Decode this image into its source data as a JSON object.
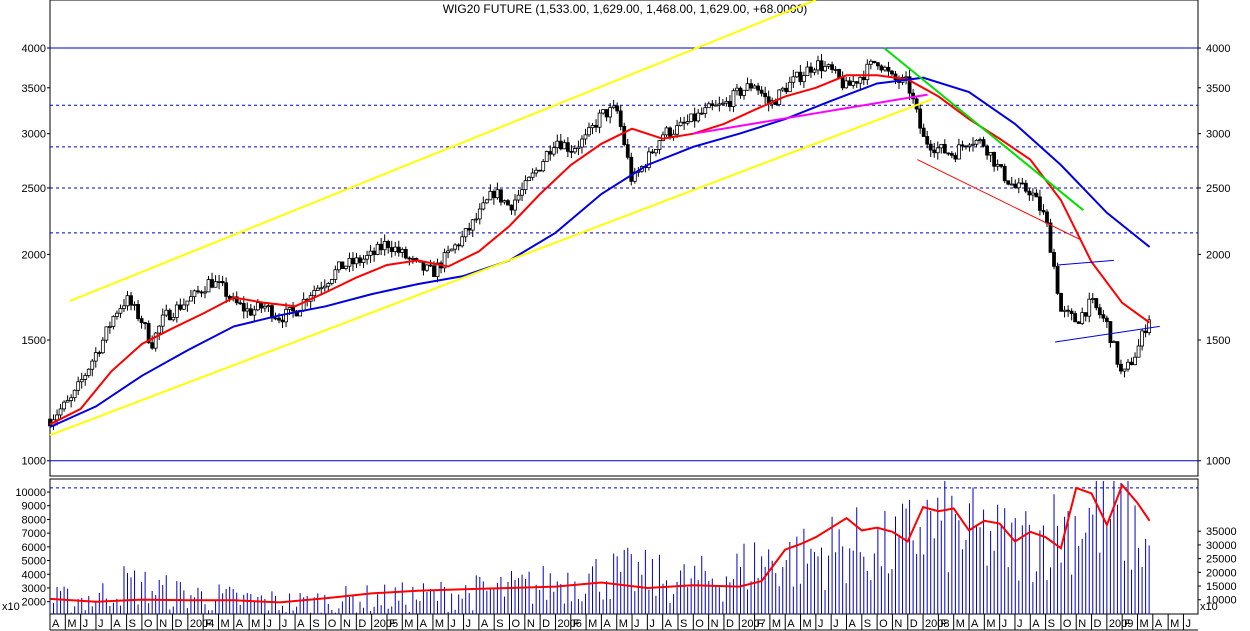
{
  "title": "WIG20 FUTURE (1,533.00, 1,629.00, 1,468.00, 1,629.00, +68.0000)",
  "chart_data": [
    {
      "panel": "price",
      "type": "candlestick",
      "scale": "log",
      "ylim": [
        950,
        4700
      ],
      "y_ticks": [
        1000,
        1500,
        2000,
        2500,
        3000,
        3500,
        4000
      ],
      "reference_lines": [
        {
          "y": 4000,
          "style": "solid",
          "color": "#0000c0"
        },
        {
          "y": 3300,
          "style": "dashed",
          "color": "#0000c0"
        },
        {
          "y": 2870,
          "style": "dashed",
          "color": "#0000c0"
        },
        {
          "y": 2500,
          "style": "dashed",
          "color": "#0000c0"
        },
        {
          "y": 2150,
          "style": "dashed",
          "color": "#0000c0"
        },
        {
          "y": 1000,
          "style": "solid",
          "color": "#0000c0"
        }
      ],
      "x_start": "2003-04",
      "x_end": "2009-06",
      "x_labels": [
        "A",
        "M",
        "J",
        "J",
        "A",
        "S",
        "O",
        "N",
        "D",
        "2004",
        "F",
        "M",
        "A",
        "M",
        "J",
        "J",
        "A",
        "S",
        "O",
        "N",
        "D",
        "2005",
        "F",
        "M",
        "A",
        "M",
        "J",
        "J",
        "A",
        "S",
        "O",
        "N",
        "D",
        "2006",
        "F",
        "M",
        "A",
        "M",
        "J",
        "J",
        "A",
        "S",
        "O",
        "N",
        "D",
        "2007",
        "F",
        "M",
        "A",
        "M",
        "J",
        "J",
        "A",
        "S",
        "O",
        "N",
        "D",
        "2008",
        "F",
        "M",
        "A",
        "M",
        "J",
        "J",
        "A",
        "S",
        "O",
        "N",
        "D",
        "2009",
        "F",
        "M",
        "A",
        "M",
        "J"
      ],
      "price_path": [
        [
          "2003-04-01",
          1150
        ],
        [
          "2003-05-15",
          1230
        ],
        [
          "2003-06-15",
          1360
        ],
        [
          "2003-07-15",
          1500
        ],
        [
          "2003-08-10",
          1650
        ],
        [
          "2003-09-01",
          1720
        ],
        [
          "2003-10-01",
          1600
        ],
        [
          "2003-10-20",
          1480
        ],
        [
          "2003-11-15",
          1620
        ],
        [
          "2003-12-15",
          1680
        ],
        [
          "2004-01-15",
          1740
        ],
        [
          "2004-02-15",
          1830
        ],
        [
          "2004-03-10",
          1780
        ],
        [
          "2004-04-01",
          1700
        ],
        [
          "2004-05-01",
          1650
        ],
        [
          "2004-06-01",
          1680
        ],
        [
          "2004-07-01",
          1620
        ],
        [
          "2004-08-01",
          1650
        ],
        [
          "2004-09-01",
          1760
        ],
        [
          "2004-10-01",
          1830
        ],
        [
          "2004-11-01",
          1920
        ],
        [
          "2004-12-01",
          1950
        ],
        [
          "2005-01-01",
          1990
        ],
        [
          "2005-02-01",
          2080
        ],
        [
          "2005-03-01",
          2000
        ],
        [
          "2005-04-01",
          1920
        ],
        [
          "2005-05-01",
          1880
        ],
        [
          "2005-06-01",
          2000
        ],
        [
          "2005-07-01",
          2120
        ],
        [
          "2005-08-01",
          2280
        ],
        [
          "2005-09-01",
          2470
        ],
        [
          "2005-10-01",
          2350
        ],
        [
          "2005-11-01",
          2500
        ],
        [
          "2005-12-01",
          2700
        ],
        [
          "2006-01-01",
          2950
        ],
        [
          "2006-02-01",
          2850
        ],
        [
          "2006-03-01",
          2950
        ],
        [
          "2006-04-01",
          3200
        ],
        [
          "2006-05-01",
          3250
        ],
        [
          "2006-06-01",
          2550
        ],
        [
          "2006-07-01",
          2750
        ],
        [
          "2006-08-01",
          3000
        ],
        [
          "2006-09-01",
          3050
        ],
        [
          "2006-10-01",
          3150
        ],
        [
          "2006-11-01",
          3250
        ],
        [
          "2006-12-01",
          3300
        ],
        [
          "2007-01-01",
          3450
        ],
        [
          "2007-02-01",
          3550
        ],
        [
          "2007-03-01",
          3300
        ],
        [
          "2007-04-01",
          3500
        ],
        [
          "2007-05-01",
          3650
        ],
        [
          "2007-06-01",
          3800
        ],
        [
          "2007-07-01",
          3700
        ],
        [
          "2007-08-01",
          3500
        ],
        [
          "2007-09-01",
          3650
        ],
        [
          "2007-10-01",
          3850
        ],
        [
          "2007-11-01",
          3600
        ],
        [
          "2007-12-01",
          3550
        ],
        [
          "2008-01-01",
          2950
        ],
        [
          "2008-02-01",
          2850
        ],
        [
          "2008-03-01",
          2800
        ],
        [
          "2008-04-01",
          2950
        ],
        [
          "2008-05-01",
          2900
        ],
        [
          "2008-06-01",
          2650
        ],
        [
          "2008-07-01",
          2500
        ],
        [
          "2008-08-01",
          2480
        ],
        [
          "2008-09-01",
          2250
        ],
        [
          "2008-10-01",
          1650
        ],
        [
          "2008-11-01",
          1600
        ],
        [
          "2008-12-01",
          1700
        ],
        [
          "2009-01-01",
          1580
        ],
        [
          "2009-02-01",
          1320
        ],
        [
          "2009-03-01",
          1450
        ],
        [
          "2009-03-25",
          1629
        ]
      ],
      "overlays": [
        {
          "name": "",
          "color": "#ff0000",
          "points": [
            [
              "2003-04-01",
              1130
            ],
            [
              "2003-06-01",
              1190
            ],
            [
              "2003-08-01",
              1350
            ],
            [
              "2003-10-01",
              1480
            ],
            [
              "2003-12-01",
              1560
            ],
            [
              "2004-02-01",
              1640
            ],
            [
              "2004-04-01",
              1730
            ],
            [
              "2004-06-01",
              1700
            ],
            [
              "2004-08-01",
              1680
            ],
            [
              "2004-10-01",
              1760
            ],
            [
              "2004-12-01",
              1850
            ],
            [
              "2005-02-01",
              1930
            ],
            [
              "2005-04-01",
              1960
            ],
            [
              "2005-06-01",
              1920
            ],
            [
              "2005-08-01",
              2020
            ],
            [
              "2005-10-01",
              2200
            ],
            [
              "2005-12-01",
              2450
            ],
            [
              "2006-02-01",
              2700
            ],
            [
              "2006-04-01",
              2900
            ],
            [
              "2006-06-01",
              3050
            ],
            [
              "2006-08-01",
              2950
            ],
            [
              "2006-10-01",
              3000
            ],
            [
              "2006-12-01",
              3100
            ],
            [
              "2007-02-01",
              3250
            ],
            [
              "2007-04-01",
              3400
            ],
            [
              "2007-06-01",
              3500
            ],
            [
              "2007-08-01",
              3650
            ],
            [
              "2007-10-01",
              3650
            ],
            [
              "2007-12-01",
              3600
            ],
            [
              "2008-02-01",
              3400
            ],
            [
              "2008-04-01",
              3150
            ],
            [
              "2008-06-01",
              2950
            ],
            [
              "2008-08-01",
              2750
            ],
            [
              "2008-10-01",
              2400
            ],
            [
              "2008-12-01",
              1950
            ],
            [
              "2009-02-01",
              1700
            ],
            [
              "2009-03-25",
              1590
            ]
          ]
        },
        {
          "name": "",
          "color": "#0000e0",
          "points": [
            [
              "2003-04-01",
              1120
            ],
            [
              "2003-07-01",
              1200
            ],
            [
              "2003-10-01",
              1330
            ],
            [
              "2004-01-01",
              1450
            ],
            [
              "2004-04-01",
              1570
            ],
            [
              "2004-07-01",
              1630
            ],
            [
              "2004-10-01",
              1680
            ],
            [
              "2005-01-01",
              1750
            ],
            [
              "2005-04-01",
              1810
            ],
            [
              "2005-07-01",
              1860
            ],
            [
              "2005-10-01",
              1960
            ],
            [
              "2006-01-01",
              2150
            ],
            [
              "2006-04-01",
              2450
            ],
            [
              "2006-07-01",
              2700
            ],
            [
              "2006-10-01",
              2870
            ],
            [
              "2007-01-01",
              3000
            ],
            [
              "2007-04-01",
              3150
            ],
            [
              "2007-07-01",
              3350
            ],
            [
              "2007-10-01",
              3550
            ],
            [
              "2008-01-01",
              3620
            ],
            [
              "2008-04-01",
              3450
            ],
            [
              "2008-07-01",
              3100
            ],
            [
              "2008-10-01",
              2700
            ],
            [
              "2009-01-01",
              2300
            ],
            [
              "2009-03-25",
              2050
            ]
          ]
        },
        {
          "name": "",
          "color": "#ffff00",
          "points": [
            [
              "2003-05-10",
              1710
            ],
            [
              "2007-06-01",
              4700
            ]
          ]
        },
        {
          "name": "",
          "color": "#ffff00",
          "points": [
            [
              "2003-04-01",
              1090
            ],
            [
              "2008-01-20",
              3370
            ]
          ]
        },
        {
          "name": "",
          "color": "#00e000",
          "points": [
            [
              "2007-10-15",
              4000
            ],
            [
              "2008-11-15",
              2320
            ]
          ]
        },
        {
          "name": "",
          "color": "#ff00ff",
          "points": [
            [
              "2006-10-01",
              3000
            ],
            [
              "2008-01-10",
              3420
            ]
          ]
        },
        {
          "name": "",
          "color": "#ff0000",
          "points": [
            [
              "2007-12-20",
              2750
            ],
            [
              "2008-11-10",
              2100
            ]
          ]
        },
        {
          "name": "",
          "color": "#0000e0",
          "points": [
            [
              "2008-09-25",
              1930
            ],
            [
              "2009-01-15",
              1960
            ]
          ]
        },
        {
          "name": "",
          "color": "#0000e0",
          "points": [
            [
              "2008-09-20",
              1490
            ],
            [
              "2009-04-15",
              1570
            ]
          ]
        }
      ]
    },
    {
      "panel": "volume",
      "type": "bar",
      "multiplier_label": "x10",
      "left_axis_ticks": [
        2000,
        3000,
        4000,
        5000,
        6000,
        7000,
        8000,
        9000,
        10000
      ],
      "right_axis_ticks": [
        10000,
        15000,
        20000,
        25000,
        30000,
        35000
      ],
      "reference_line": {
        "y_left": 10300,
        "style": "dashed",
        "color": "#0000c0"
      },
      "volume_path": [
        [
          "2003-04-01",
          2300
        ],
        [
          "2003-07-01",
          2500
        ],
        [
          "2003-09-01",
          3700
        ],
        [
          "2003-12-01",
          2900
        ],
        [
          "2004-04-01",
          2400
        ],
        [
          "2004-08-01",
          2100
        ],
        [
          "2004-12-01",
          2400
        ],
        [
          "2005-04-01",
          2600
        ],
        [
          "2005-08-01",
          3000
        ],
        [
          "2005-12-01",
          3500
        ],
        [
          "2006-03-01",
          4200
        ],
        [
          "2006-06-01",
          4500
        ],
        [
          "2006-09-01",
          3800
        ],
        [
          "2006-12-01",
          4200
        ],
        [
          "2007-02-01",
          5400
        ],
        [
          "2007-05-01",
          5700
        ],
        [
          "2007-08-01",
          6800
        ],
        [
          "2007-11-01",
          6400
        ],
        [
          "2008-01-01",
          8500
        ],
        [
          "2008-04-01",
          7800
        ],
        [
          "2008-07-01",
          6800
        ],
        [
          "2008-10-01",
          8200
        ],
        [
          "2008-12-01",
          9200
        ],
        [
          "2009-02-01",
          8800
        ],
        [
          "2009-03-25",
          6500
        ]
      ],
      "overlay": {
        "name": "",
        "color": "#ff0000",
        "points": [
          [
            "2003-04-01",
            2200
          ],
          [
            "2003-07-01",
            2000
          ],
          [
            "2003-10-01",
            2150
          ],
          [
            "2004-01-01",
            2100
          ],
          [
            "2004-04-01",
            2100
          ],
          [
            "2004-07-01",
            1950
          ],
          [
            "2004-10-01",
            2250
          ],
          [
            "2005-01-01",
            2600
          ],
          [
            "2005-04-01",
            2800
          ],
          [
            "2005-07-01",
            2900
          ],
          [
            "2005-10-01",
            3000
          ],
          [
            "2006-01-01",
            3100
          ],
          [
            "2006-04-01",
            3400
          ],
          [
            "2006-07-01",
            3000
          ],
          [
            "2006-10-01",
            3200
          ],
          [
            "2007-01-01",
            3100
          ],
          [
            "2007-02-15",
            3500
          ],
          [
            "2007-03-01",
            4300
          ],
          [
            "2007-04-01",
            5800
          ],
          [
            "2007-05-01",
            6200
          ],
          [
            "2007-06-01",
            6700
          ],
          [
            "2007-07-01",
            7400
          ],
          [
            "2007-08-01",
            8100
          ],
          [
            "2007-09-01",
            7200
          ],
          [
            "2007-10-01",
            7400
          ],
          [
            "2007-11-01",
            7100
          ],
          [
            "2007-12-01",
            6400
          ],
          [
            "2008-01-01",
            8900
          ],
          [
            "2008-02-01",
            8600
          ],
          [
            "2008-03-01",
            8800
          ],
          [
            "2008-04-01",
            7200
          ],
          [
            "2008-05-01",
            7900
          ],
          [
            "2008-06-01",
            7700
          ],
          [
            "2008-07-01",
            6400
          ],
          [
            "2008-08-01",
            7100
          ],
          [
            "2008-09-01",
            6700
          ],
          [
            "2008-10-01",
            5900
          ],
          [
            "2008-11-01",
            10300
          ],
          [
            "2008-12-01",
            9900
          ],
          [
            "2009-01-01",
            7600
          ],
          [
            "2009-02-01",
            10500
          ],
          [
            "2009-03-01",
            9200
          ],
          [
            "2009-03-25",
            7900
          ]
        ]
      }
    }
  ]
}
